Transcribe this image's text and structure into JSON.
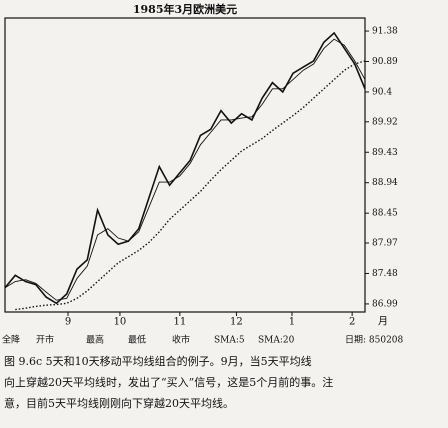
{
  "chart_data": {
    "type": "line",
    "title": "1985年3月欧洲美元",
    "x": [
      0,
      4,
      8,
      12,
      16,
      20,
      24,
      28,
      32,
      36,
      40,
      44,
      48,
      52,
      56,
      60,
      64,
      68,
      72,
      76,
      80,
      84,
      88,
      92,
      96,
      100,
      104,
      108,
      112,
      116,
      120,
      124,
      128,
      132,
      136,
      140
    ],
    "series": [
      {
        "name": "收市",
        "color": "#111111",
        "line_style": "solid",
        "values": [
          87.25,
          87.45,
          87.35,
          87.3,
          87.1,
          87.0,
          87.15,
          87.55,
          87.7,
          88.5,
          88.1,
          87.95,
          88.0,
          88.2,
          88.7,
          89.2,
          88.9,
          89.1,
          89.3,
          89.7,
          89.8,
          90.1,
          89.9,
          90.05,
          89.95,
          90.3,
          90.55,
          90.4,
          90.7,
          90.8,
          90.9,
          91.2,
          91.35,
          91.1,
          90.85,
          90.45
        ]
      },
      {
        "name": "SMA:5",
        "color": "#111111",
        "line_style": "thin",
        "values": [
          87.25,
          87.35,
          87.38,
          87.32,
          87.18,
          87.05,
          87.08,
          87.4,
          87.6,
          88.1,
          88.2,
          88.05,
          88.0,
          88.15,
          88.55,
          88.95,
          88.95,
          89.05,
          89.25,
          89.55,
          89.75,
          89.95,
          89.95,
          89.98,
          90.0,
          90.2,
          90.45,
          90.45,
          90.6,
          90.75,
          90.85,
          91.1,
          91.25,
          91.15,
          90.9,
          90.6
        ]
      },
      {
        "name": "SMA:20",
        "color": "#111111",
        "line_style": "dotted",
        "values": [
          null,
          86.9,
          86.92,
          86.95,
          86.97,
          86.98,
          87.0,
          87.08,
          87.2,
          87.35,
          87.5,
          87.65,
          87.75,
          87.85,
          87.98,
          88.15,
          88.35,
          88.5,
          88.65,
          88.8,
          88.98,
          89.15,
          89.3,
          89.45,
          89.55,
          89.65,
          89.78,
          89.9,
          90.02,
          90.15,
          90.3,
          90.45,
          90.6,
          90.75,
          90.85,
          90.9
        ]
      }
    ],
    "xlim": [
      0,
      140
    ],
    "xticks": [
      {
        "value": 24.5,
        "label": "9"
      },
      {
        "value": 44.7,
        "label": "10"
      },
      {
        "value": 68,
        "label": "11"
      },
      {
        "value": 90,
        "label": "12"
      },
      {
        "value": 111.6,
        "label": "1"
      },
      {
        "value": 135,
        "label": "2"
      }
    ],
    "x_unit": "月",
    "ylim": [
      86.86,
      91.59
    ],
    "yticks": [
      86.99,
      87.48,
      87.97,
      88.45,
      88.94,
      89.43,
      89.92,
      90.4,
      90.89,
      91.38
    ],
    "ytick_labels_side": "right",
    "legend_fields": [
      "全降",
      "开市",
      "最高",
      "最低"
    ],
    "date_label": "日期: 850208",
    "caption": [
      "图 9.6c   5天和10天移动平均线组合的例子。9月，当5天平均线",
      "向上穿越20天平均线时，发出了“买入”信号，这是5个月前的事。注",
      "意，目前5天平均线刚刚向下穿越20天平均线。"
    ]
  }
}
